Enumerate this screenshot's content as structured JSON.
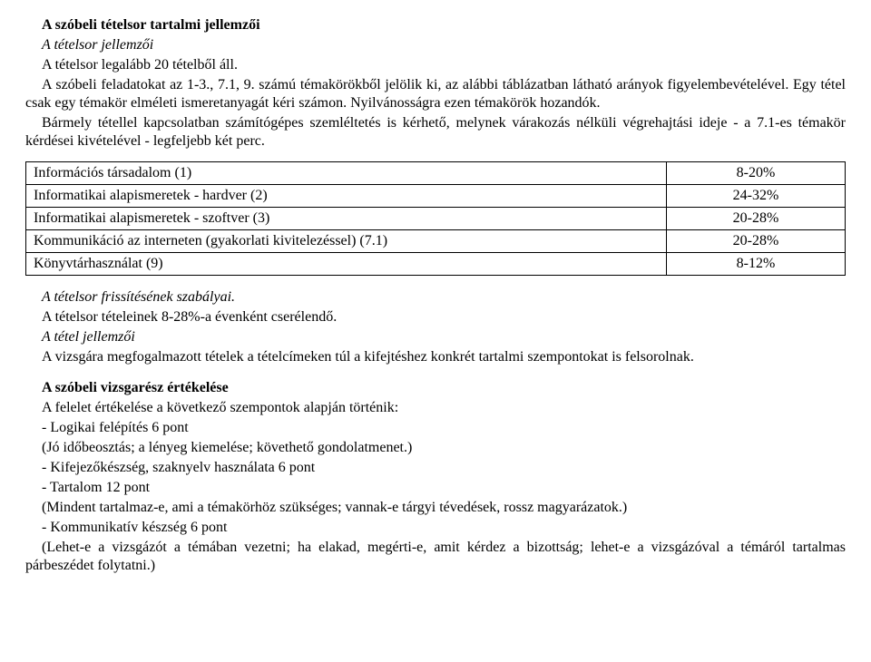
{
  "header": {
    "title": "A szóbeli tételsor tartalmi jellemzői",
    "sub1": "A tételsor jellemzői",
    "sub2": "A tételsor legalább 20 tételből áll."
  },
  "intro": {
    "p1": "A szóbeli feladatokat az 1-3., 7.1, 9. számú témakörökből jelölik ki, az alábbi táblázatban látható arányok figyelembevételével. Egy tétel csak egy témakör elméleti ismeretanyagát kéri számon. Nyilvánosságra ezen témakörök hozandók.",
    "p2": "Bármely tétellel kapcsolatban számítógépes szemléltetés is kérhető, melynek várakozás nélküli végrehajtási ideje - a 7.1-es témakör kérdései kivételével - legfeljebb két perc."
  },
  "table": {
    "rows": [
      {
        "label": "Információs társadalom (1)",
        "pct": "8-20%"
      },
      {
        "label": "Informatikai alapismeretek - hardver (2)",
        "pct": "24-32%"
      },
      {
        "label": "Informatikai alapismeretek - szoftver (3)",
        "pct": "20-28%"
      },
      {
        "label": "Kommunikáció az interneten (gyakorlati kivitelezéssel) (7.1)",
        "pct": "20-28%"
      },
      {
        "label": "Könyvtárhasználat (9)",
        "pct": "8-12%"
      }
    ]
  },
  "rules": {
    "r1": "A tételsor frissítésének szabályai.",
    "r2": "A tételsor tételeinek 8-28%-a évenként cserélendő.",
    "r3": "A tétel jellemzői",
    "r4": "A vizsgára megfogalmazott tételek a tételcímeken túl a kifejtéshez konkrét tartalmi szempontokat is felsorolnak."
  },
  "eval": {
    "title": "A szóbeli vizsgarész értékelése",
    "e1": "A felelet értékelése a következő szempontok alapján történik:",
    "e2": "- Logikai felépítés 6 pont",
    "e3": "(Jó időbeosztás; a lényeg kiemelése; követhető gondolatmenet.)",
    "e4": "- Kifejezőkészség, szaknyelv használata 6 pont",
    "e5": "- Tartalom 12 pont",
    "e6": "(Mindent tartalmaz-e, ami a témakörhöz szükséges; vannak-e tárgyi tévedések, rossz magyarázatok.)",
    "e7": "- Kommunikatív készség 6 pont",
    "e8": "(Lehet-e a vizsgázót a témában vezetni; ha elakad, megérti-e, amit kérdez a bizottság; lehet-e a vizsgázóval a témáról tartalmas párbeszédet folytatni.)"
  }
}
